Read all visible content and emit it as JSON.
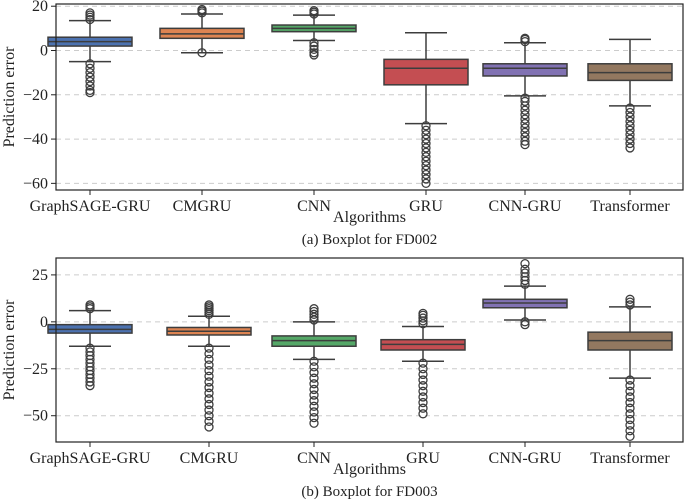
{
  "chart_data": [
    {
      "type": "boxplot",
      "caption": "(a) Boxplot for FD002",
      "xlabel": "Algorithms",
      "ylabel": "Prediction error",
      "ylim": [
        -63,
        21
      ],
      "yticks": [
        20,
        0,
        -20,
        -40,
        -60
      ],
      "ytick_labels": [
        "20",
        "0",
        "−20",
        "−40",
        "−60"
      ],
      "grid": "horizontal-dashed",
      "categories": [
        "GraphSAGE-GRU",
        "CMGRU",
        "CNN",
        "GRU",
        "CNN-GRU",
        "Transformer"
      ],
      "colors": [
        "#4c72b0",
        "#dd8452",
        "#55a868",
        "#c44e52",
        "#8172b3",
        "#937860"
      ],
      "boxes": [
        {
          "whisker_low": -5,
          "q1": 2,
          "median": 4,
          "q3": 6,
          "whisker_high": 13.5,
          "outliers_high": [
            14,
            15,
            16,
            17
          ],
          "outliers_low": [
            -6,
            -8,
            -10,
            -12,
            -14,
            -16,
            -18,
            -19
          ]
        },
        {
          "whisker_low": -1,
          "q1": 5.5,
          "median": 7.5,
          "q3": 10,
          "whisker_high": 16.5,
          "outliers_high": [
            17,
            17.8,
            18.5
          ],
          "outliers_low": [
            -1
          ]
        },
        {
          "whisker_low": 4.5,
          "q1": 8.5,
          "median": 10,
          "q3": 11.5,
          "whisker_high": 16,
          "outliers_high": [
            16.5,
            17.3,
            18
          ],
          "outliers_low": [
            3.5,
            2,
            0.5,
            -1,
            -2
          ]
        },
        {
          "whisker_low": -33,
          "q1": -15.5,
          "median": -8,
          "q3": -4,
          "whisker_high": 8,
          "outliers_high": [],
          "outliers_low": [
            -34,
            -36,
            -38,
            -40,
            -42,
            -44,
            -46,
            -48,
            -50,
            -52,
            -54,
            -56,
            -58,
            -60
          ]
        },
        {
          "whisker_low": -20.5,
          "q1": -11.5,
          "median": -8,
          "q3": -6,
          "whisker_high": 3.5,
          "outliers_high": [
            4,
            5,
            5.5
          ],
          "outliers_low": [
            -21.5,
            -23,
            -25,
            -27,
            -29,
            -31,
            -33,
            -35,
            -37,
            -39,
            -41,
            -42.5
          ]
        },
        {
          "whisker_low": -25,
          "q1": -13.5,
          "median": -10,
          "q3": -6,
          "whisker_high": 5,
          "outliers_high": [],
          "outliers_low": [
            -26,
            -28,
            -30,
            -32,
            -34,
            -36,
            -38,
            -40,
            -42,
            -44
          ]
        }
      ]
    },
    {
      "type": "boxplot",
      "caption": "(b) Boxplot for FD003",
      "xlabel": "Algorithms",
      "ylabel": "Prediction error",
      "ylim": [
        -64,
        34
      ],
      "yticks": [
        25,
        0,
        -25,
        -50
      ],
      "ytick_labels": [
        "25",
        "0",
        "−25",
        "−50"
      ],
      "grid": "horizontal-dashed",
      "categories": [
        "GraphSAGE-GRU",
        "CMGRU",
        "CNN",
        "GRU",
        "CNN-GRU",
        "Transformer"
      ],
      "colors": [
        "#4c72b0",
        "#dd8452",
        "#55a868",
        "#c44e52",
        "#8172b3",
        "#937860"
      ],
      "boxes": [
        {
          "whisker_low": -13,
          "q1": -6,
          "median": -4,
          "q3": -1.5,
          "whisker_high": 6,
          "outliers_high": [
            7,
            8,
            9
          ],
          "outliers_low": [
            -14,
            -16,
            -18,
            -20,
            -22,
            -24,
            -26,
            -28,
            -30,
            -32,
            -34
          ]
        },
        {
          "whisker_low": -13,
          "q1": -7,
          "median": -5,
          "q3": -3,
          "whisker_high": 3,
          "outliers_high": [
            4,
            5,
            6,
            7,
            8,
            9
          ],
          "outliers_low": [
            -14,
            -17,
            -20,
            -23,
            -26,
            -29,
            -32,
            -35,
            -38,
            -41,
            -44,
            -47,
            -50,
            -53,
            -56
          ]
        },
        {
          "whisker_low": -20,
          "q1": -13,
          "median": -10,
          "q3": -7.5,
          "whisker_high": 0,
          "outliers_high": [
            1,
            2.5,
            4,
            5.5,
            7
          ],
          "outliers_low": [
            -21,
            -24,
            -27,
            -30,
            -33,
            -36,
            -39,
            -42,
            -45,
            -48,
            -51,
            -54
          ]
        },
        {
          "whisker_low": -21,
          "q1": -15,
          "median": -12,
          "q3": -9.5,
          "whisker_high": -2.5,
          "outliers_high": [
            -1,
            0.5,
            2,
            3.5,
            4.5
          ],
          "outliers_low": [
            -22,
            -25,
            -28,
            -31,
            -34,
            -37,
            -40,
            -43,
            -46,
            -49
          ]
        },
        {
          "whisker_low": 1,
          "q1": 7.5,
          "median": 10,
          "q3": 12,
          "whisker_high": 19,
          "outliers_high": [
            20,
            22,
            24,
            26,
            28,
            31
          ],
          "outliers_low": [
            0,
            -1.5
          ]
        },
        {
          "whisker_low": -30,
          "q1": -15,
          "median": -10,
          "q3": -5.5,
          "whisker_high": 8,
          "outliers_high": [
            9,
            10.5,
            12
          ],
          "outliers_low": [
            -31,
            -34,
            -37,
            -40,
            -43,
            -46,
            -49,
            -52,
            -55,
            -58,
            -61
          ]
        }
      ]
    }
  ]
}
